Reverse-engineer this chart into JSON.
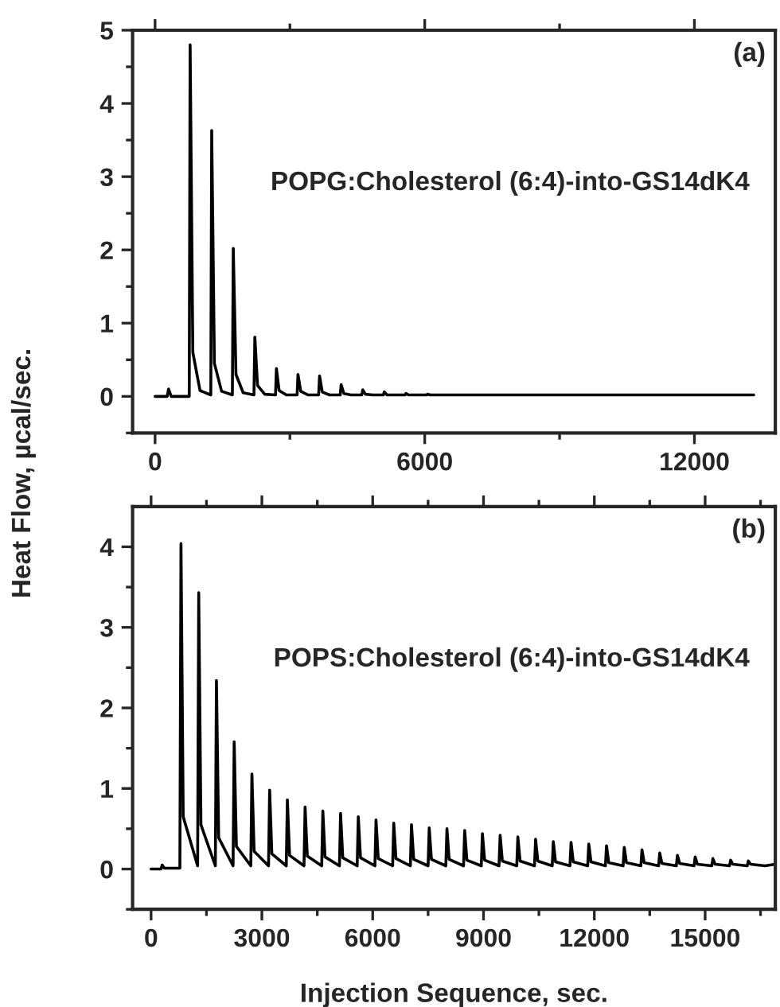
{
  "chart_data": [
    {
      "type": "line",
      "ylabel": "Heat Flow, µcal/sec.",
      "annotations": [
        "(a)",
        "POPG:Cholesterol (6:4)-into-GS14dK4"
      ],
      "xlim": [
        -500,
        13800
      ],
      "xticks": [
        0,
        {
          "value": 3000,
          "label": null
        },
        6000,
        {
          "value": 9000,
          "label": null
        },
        12000
      ],
      "ylim": [
        -0.5,
        5
      ],
      "yticks": [
        {
          "value": -0.5,
          "label": null
        },
        0,
        {
          "value": 0.5,
          "label": null
        },
        1,
        {
          "value": 1.5,
          "label": null
        },
        2,
        {
          "value": 2.5,
          "label": null
        },
        3,
        {
          "value": 3.5,
          "label": null
        },
        4,
        {
          "value": 4.5,
          "label": null
        },
        5
      ],
      "grid": false,
      "legend": false,
      "marker": "none",
      "line_style": "solid",
      "series": [
        {
          "color": "#000000",
          "x": [
            0,
            270,
            300,
            360,
            760,
            780,
            840,
            1000,
            1240,
            1260,
            1320,
            1480,
            1720,
            1740,
            1800,
            1960,
            2200,
            2220,
            2280,
            2440,
            2680,
            2700,
            2760,
            2920,
            3160,
            3180,
            3240,
            3400,
            3640,
            3660,
            3720,
            3880,
            4120,
            4140,
            4200,
            4360,
            4600,
            4620,
            4680,
            4840,
            5080,
            5100,
            5160,
            5320,
            5560,
            5580,
            5640,
            5800,
            6040,
            6060,
            6120,
            13320
          ],
          "values": [
            0,
            0,
            0.1,
            0,
            0,
            4.8,
            0.6,
            0.08,
            0.02,
            3.63,
            0.45,
            0.07,
            0.02,
            2.02,
            0.3,
            0.05,
            0.02,
            0.81,
            0.15,
            0.03,
            0.02,
            0.38,
            0.08,
            0.02,
            0.02,
            0.3,
            0.07,
            0.02,
            0.02,
            0.28,
            0.06,
            0.02,
            0.02,
            0.16,
            0.04,
            0.02,
            0.02,
            0.09,
            0.03,
            0.02,
            0.02,
            0.06,
            0.02,
            0.02,
            0.02,
            0.04,
            0.02,
            0.02,
            0.02,
            0.03,
            0.02,
            0.02
          ]
        }
      ]
    },
    {
      "type": "line",
      "xlabel": "Injection Sequence, sec.",
      "annotations": [
        "(b)",
        "POPS:Cholesterol (6:4)-into-GS14dK4"
      ],
      "xlim": [
        -500,
        16900
      ],
      "xticks": [
        0,
        {
          "value": 1500,
          "label": null
        },
        3000,
        {
          "value": 4500,
          "label": null
        },
        6000,
        {
          "value": 7500,
          "label": null
        },
        9000,
        {
          "value": 10500,
          "label": null
        },
        12000,
        {
          "value": 13500,
          "label": null
        },
        15000,
        {
          "value": 16500,
          "label": null
        }
      ],
      "ylim": [
        -0.5,
        4.5
      ],
      "yticks": [
        {
          "value": -0.5,
          "label": null
        },
        0,
        {
          "value": 0.5,
          "label": null
        },
        1,
        {
          "value": 1.5,
          "label": null
        },
        2,
        {
          "value": 2.5,
          "label": null
        },
        3,
        {
          "value": 3.5,
          "label": null
        },
        4
      ],
      "grid": false,
      "legend": false,
      "marker": "none",
      "line_style": "solid",
      "series": [
        {
          "color": "#000000",
          "x": [
            0,
            270,
            300,
            360,
            780,
            810,
            870,
            1260,
            1290,
            1350,
            1740,
            1770,
            1830,
            2220,
            2250,
            2310,
            2700,
            2730,
            2790,
            3180,
            3210,
            3270,
            3660,
            3690,
            3750,
            4140,
            4170,
            4230,
            4620,
            4650,
            4710,
            5100,
            5130,
            5190,
            5580,
            5610,
            5670,
            6060,
            6090,
            6150,
            6540,
            6570,
            6630,
            7020,
            7050,
            7110,
            7500,
            7530,
            7590,
            7980,
            8010,
            8070,
            8460,
            8490,
            8550,
            8940,
            8970,
            9030,
            9420,
            9450,
            9510,
            9900,
            9930,
            9990,
            10380,
            10410,
            10470,
            10860,
            10890,
            10950,
            11340,
            11370,
            11430,
            11820,
            11850,
            11910,
            12300,
            12330,
            12390,
            12780,
            12810,
            12870,
            13260,
            13290,
            13350,
            13740,
            13770,
            13830,
            14220,
            14250,
            14310,
            14700,
            14730,
            14790,
            15180,
            15210,
            15270,
            15660,
            15690,
            15750,
            16140,
            16170,
            16230,
            16620,
            16900
          ],
          "values": [
            0,
            0,
            0.05,
            0.01,
            0.01,
            4.04,
            0.65,
            0.04,
            3.43,
            0.55,
            0.04,
            2.34,
            0.39,
            0.04,
            1.58,
            0.28,
            0.04,
            1.18,
            0.22,
            0.04,
            0.98,
            0.19,
            0.04,
            0.86,
            0.17,
            0.04,
            0.77,
            0.16,
            0.04,
            0.72,
            0.15,
            0.04,
            0.69,
            0.14,
            0.04,
            0.65,
            0.14,
            0.04,
            0.61,
            0.13,
            0.04,
            0.57,
            0.13,
            0.04,
            0.55,
            0.12,
            0.04,
            0.51,
            0.12,
            0.04,
            0.5,
            0.12,
            0.04,
            0.48,
            0.11,
            0.04,
            0.44,
            0.11,
            0.04,
            0.42,
            0.1,
            0.04,
            0.4,
            0.1,
            0.04,
            0.37,
            0.1,
            0.04,
            0.34,
            0.09,
            0.04,
            0.33,
            0.09,
            0.04,
            0.31,
            0.09,
            0.04,
            0.29,
            0.08,
            0.04,
            0.27,
            0.08,
            0.04,
            0.24,
            0.08,
            0.04,
            0.2,
            0.07,
            0.04,
            0.17,
            0.07,
            0.04,
            0.15,
            0.06,
            0.04,
            0.13,
            0.06,
            0.04,
            0.11,
            0.06,
            0.04,
            0.1,
            0.06,
            0.04,
            0.06
          ]
        }
      ]
    }
  ]
}
